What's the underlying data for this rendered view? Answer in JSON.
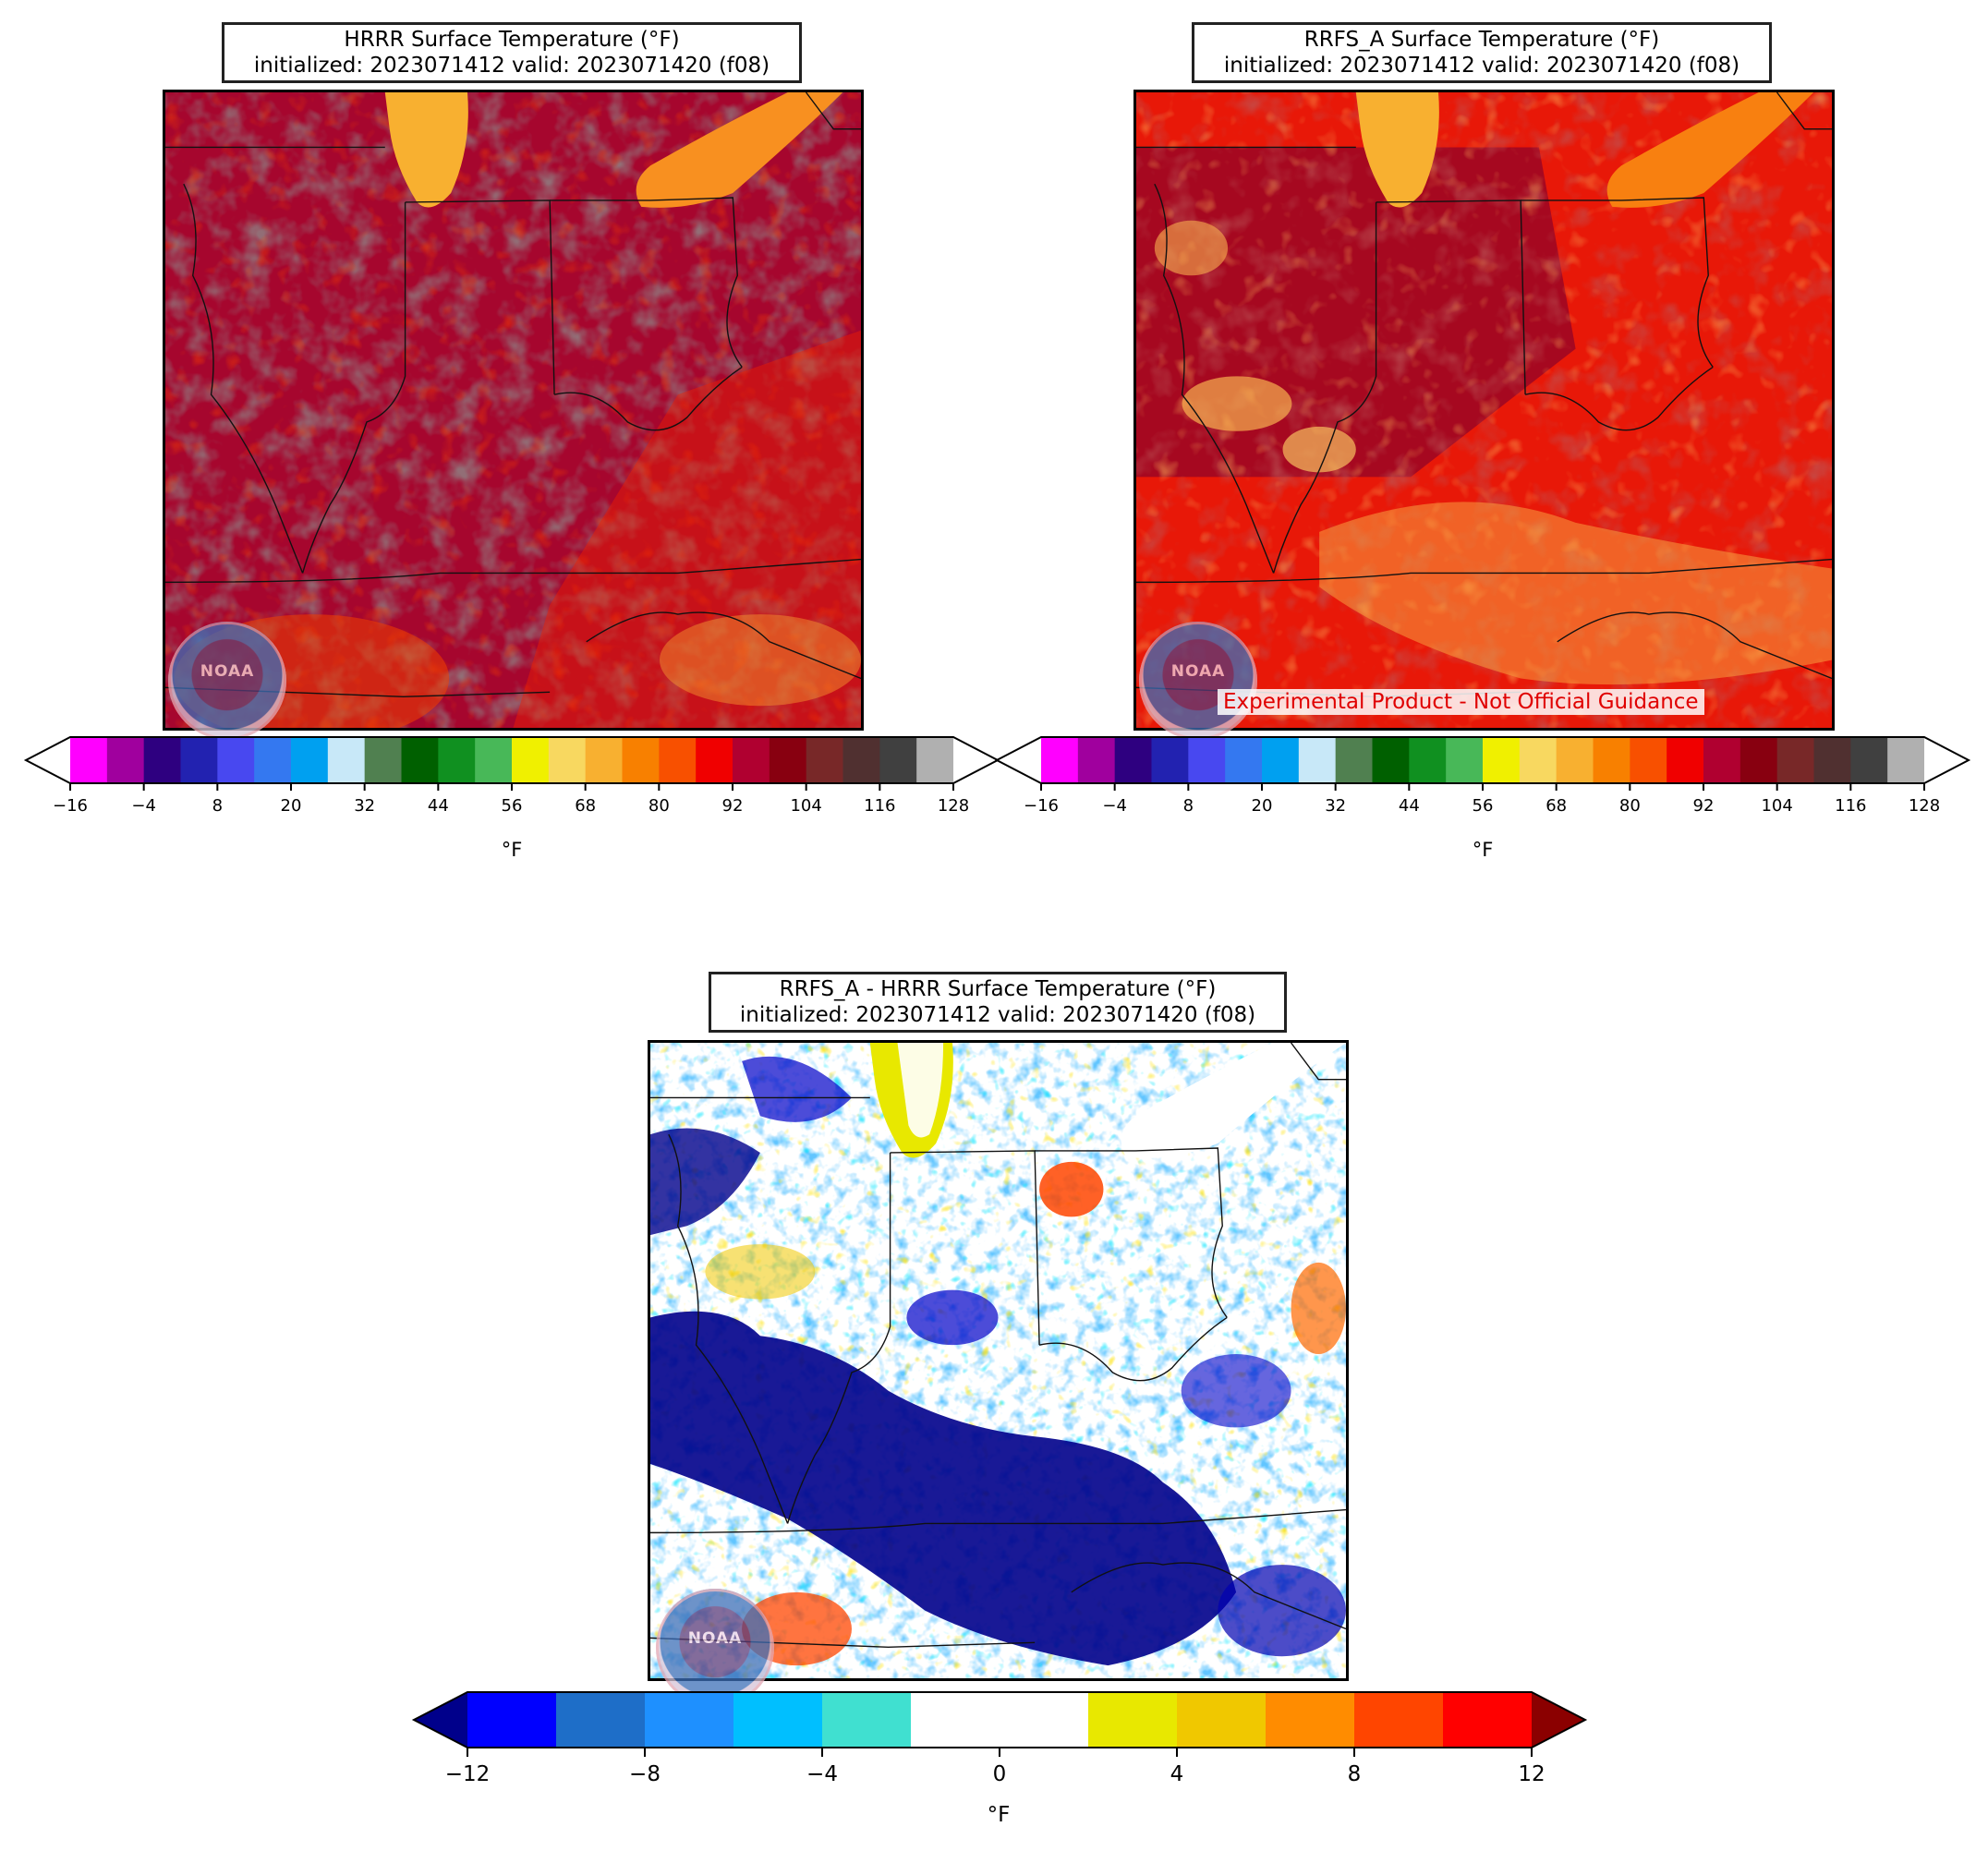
{
  "panels": {
    "hrrr": {
      "title_line1": "HRRR Surface Temperature (°F)",
      "title_line2": "initialized: 2023071412 valid: 2023071420 (f08)"
    },
    "rrfs": {
      "title_line1": "RRFS_A Surface Temperature (°F)",
      "title_line2": "initialized: 2023071412 valid: 2023071420 (f08)",
      "watermark": "Experimental Product - Not Official Guidance"
    },
    "diff": {
      "title_line1": "RRFS_A - HRRR Surface Temperature (°F)",
      "title_line2": "initialized: 2023071412 valid: 2023071420 (f08)"
    }
  },
  "logo_text": "NOAA",
  "temp_colorbar": {
    "unit": "°F",
    "tick_labels": [
      "−16",
      "−4",
      "8",
      "20",
      "32",
      "44",
      "56",
      "68",
      "80",
      "92",
      "104",
      "116",
      "128"
    ],
    "colors": [
      "#ff00ff",
      "#a0009e",
      "#2e0080",
      "#2222b0",
      "#4848f0",
      "#3478f0",
      "#00a0f0",
      "#c8e8f8",
      "#508050",
      "#006000",
      "#109020",
      "#48b858",
      "#f0f000",
      "#f8d860",
      "#f8b030",
      "#f88000",
      "#f85000",
      "#f00000",
      "#b00030",
      "#880010",
      "#782828",
      "#503030",
      "#404040",
      "#b0b0b0",
      "#ffffff"
    ]
  },
  "diff_colorbar": {
    "unit": "°F",
    "tick_labels": [
      "−12",
      "−8",
      "−4",
      "0",
      "4",
      "8",
      "12"
    ],
    "colors": [
      "#0000ff",
      "#1e6ec8",
      "#1e90ff",
      "#00bfff",
      "#40e0d0",
      "#ffffff",
      "#ffffff",
      "#e8e800",
      "#f0c800",
      "#ff8c00",
      "#ff4500",
      "#ff0000"
    ],
    "under_color": "#00008b",
    "over_color": "#8b0000"
  }
}
